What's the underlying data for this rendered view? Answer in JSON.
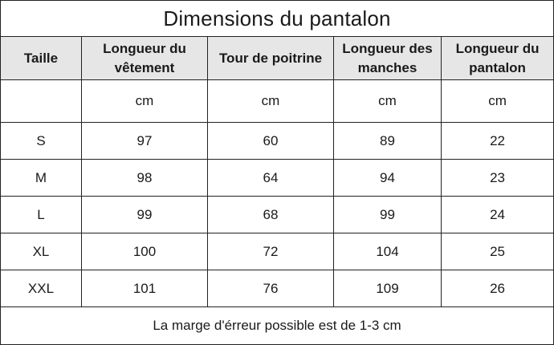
{
  "title": "Dimensions du pantalon",
  "headers": [
    "Taille",
    "Longueur du vêtement",
    "Tour de poitrine",
    "Longueur des manches",
    "Longueur du pantalon"
  ],
  "units": [
    "",
    "cm",
    "cm",
    "cm",
    "cm"
  ],
  "rows": [
    [
      "S",
      "97",
      "60",
      "89",
      "22"
    ],
    [
      "M",
      "98",
      "64",
      "94",
      "23"
    ],
    [
      "L",
      "99",
      "68",
      "99",
      "24"
    ],
    [
      "XL",
      "100",
      "72",
      "104",
      "25"
    ],
    [
      "XXL",
      "101",
      "76",
      "109",
      "26"
    ]
  ],
  "footer": "La marge d'érreur possible est de 1-3 cm"
}
